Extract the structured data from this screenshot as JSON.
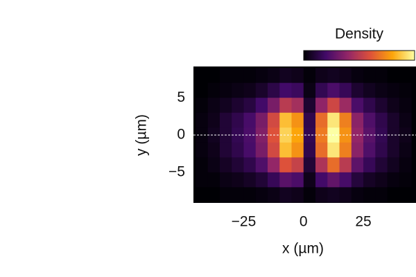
{
  "chart_data": {
    "type": "heatmap",
    "colorbar_label": "Density",
    "xlabel": "x (µm)",
    "ylabel": "y (µm)",
    "x": [
      -42.5,
      -37.5,
      -32.5,
      -27.5,
      -22.5,
      -17.5,
      -12.5,
      -7.5,
      -2.5,
      2.5,
      7.5,
      12.5,
      17.5,
      22.5,
      27.5,
      32.5,
      37.5,
      42.5
    ],
    "y": [
      8,
      6,
      4,
      2,
      0,
      -2,
      -4,
      -6,
      -8
    ],
    "z": [
      [
        0.0,
        0.0,
        0.01,
        0.01,
        0.01,
        0.02,
        0.03,
        0.05,
        0.04,
        0.01,
        0.04,
        0.05,
        0.04,
        0.02,
        0.01,
        0.01,
        0.0,
        0.0
      ],
      [
        0.0,
        0.01,
        0.02,
        0.03,
        0.04,
        0.07,
        0.12,
        0.18,
        0.16,
        0.03,
        0.14,
        0.2,
        0.15,
        0.08,
        0.05,
        0.03,
        0.02,
        0.01
      ],
      [
        0.01,
        0.03,
        0.05,
        0.08,
        0.11,
        0.18,
        0.3,
        0.45,
        0.4,
        0.08,
        0.35,
        0.5,
        0.38,
        0.2,
        0.13,
        0.08,
        0.04,
        0.02
      ],
      [
        0.02,
        0.04,
        0.09,
        0.13,
        0.19,
        0.3,
        0.51,
        0.77,
        0.68,
        0.13,
        0.6,
        0.85,
        0.64,
        0.34,
        0.21,
        0.13,
        0.07,
        0.03
      ],
      [
        0.02,
        0.05,
        0.09,
        0.14,
        0.2,
        0.32,
        0.54,
        0.81,
        0.72,
        0.14,
        0.63,
        0.9,
        0.68,
        0.36,
        0.23,
        0.14,
        0.07,
        0.04
      ],
      [
        0.02,
        0.04,
        0.09,
        0.13,
        0.19,
        0.3,
        0.51,
        0.77,
        0.68,
        0.13,
        0.6,
        0.85,
        0.64,
        0.34,
        0.21,
        0.13,
        0.07,
        0.03
      ],
      [
        0.01,
        0.03,
        0.06,
        0.09,
        0.13,
        0.21,
        0.36,
        0.54,
        0.48,
        0.09,
        0.42,
        0.6,
        0.45,
        0.24,
        0.15,
        0.09,
        0.05,
        0.02
      ],
      [
        0.01,
        0.01,
        0.03,
        0.04,
        0.06,
        0.09,
        0.15,
        0.23,
        0.2,
        0.04,
        0.18,
        0.25,
        0.19,
        0.1,
        0.06,
        0.04,
        0.02,
        0.01
      ],
      [
        0.0,
        0.0,
        0.01,
        0.01,
        0.01,
        0.02,
        0.03,
        0.05,
        0.04,
        0.01,
        0.04,
        0.05,
        0.04,
        0.02,
        0.01,
        0.01,
        0.0,
        0.0
      ]
    ],
    "cell_size": [
      5,
      2
    ],
    "zlim": [
      0,
      0.9
    ],
    "colormap": [
      "#000004",
      "#420a68",
      "#932667",
      "#dd513a",
      "#fca50a",
      "#fcffa4"
    ],
    "xlim": [
      -46,
      47
    ],
    "ylim": [
      -9.1,
      9.2
    ],
    "xticks": [
      {
        "value": -25,
        "label": "−25"
      },
      0,
      25
    ],
    "yticks": [
      5,
      0,
      {
        "value": -5,
        "label": "−5"
      }
    ],
    "hline": 0,
    "hline_color": "#ffffff"
  }
}
